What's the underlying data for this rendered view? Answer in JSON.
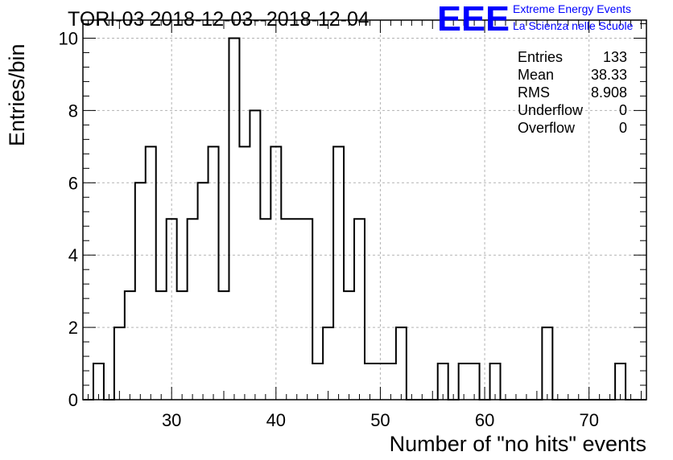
{
  "header": {
    "title": "TORI-03 2018-12-03--2018-12-04",
    "logo_text": "EEE",
    "logo_line1": "Extreme Energy Events",
    "logo_line2": "La Scienza nelle Scuole"
  },
  "stats_box": [
    {
      "label": "Entries",
      "value": "133"
    },
    {
      "label": "Mean",
      "value": "38.33"
    },
    {
      "label": "RMS",
      "value": "8.908"
    },
    {
      "label": "Underflow",
      "value": "0"
    },
    {
      "label": "Overflow",
      "value": "0"
    }
  ],
  "colors": {
    "line": "#000000",
    "grid": "#b3b3b3",
    "logo": "#0000ff"
  },
  "chart_data": {
    "type": "bar",
    "style": "step histogram",
    "title": "TORI-03 2018-12-03--2018-12-04",
    "xlabel": "Number of \"no hits\" events",
    "ylabel": "Entries/bin",
    "xlim": [
      21.5,
      75.5
    ],
    "ylim": [
      0,
      10.5
    ],
    "grid": true,
    "bin_width": 1,
    "x_ticks": [
      30,
      40,
      50,
      60,
      70
    ],
    "y_ticks": [
      0,
      2,
      4,
      6,
      8,
      10
    ],
    "bins": [
      {
        "x": 23,
        "count": 1
      },
      {
        "x": 25,
        "count": 2
      },
      {
        "x": 26,
        "count": 3
      },
      {
        "x": 27,
        "count": 6
      },
      {
        "x": 28,
        "count": 7
      },
      {
        "x": 29,
        "count": 3
      },
      {
        "x": 30,
        "count": 5
      },
      {
        "x": 31,
        "count": 3
      },
      {
        "x": 32,
        "count": 5
      },
      {
        "x": 33,
        "count": 6
      },
      {
        "x": 34,
        "count": 7
      },
      {
        "x": 35,
        "count": 3
      },
      {
        "x": 36,
        "count": 10
      },
      {
        "x": 37,
        "count": 7
      },
      {
        "x": 38,
        "count": 8
      },
      {
        "x": 39,
        "count": 5
      },
      {
        "x": 40,
        "count": 7
      },
      {
        "x": 41,
        "count": 5
      },
      {
        "x": 42,
        "count": 5
      },
      {
        "x": 43,
        "count": 5
      },
      {
        "x": 44,
        "count": 1
      },
      {
        "x": 45,
        "count": 2
      },
      {
        "x": 46,
        "count": 7
      },
      {
        "x": 47,
        "count": 3
      },
      {
        "x": 48,
        "count": 5
      },
      {
        "x": 49,
        "count": 1
      },
      {
        "x": 50,
        "count": 1
      },
      {
        "x": 51,
        "count": 1
      },
      {
        "x": 52,
        "count": 2
      },
      {
        "x": 56,
        "count": 1
      },
      {
        "x": 58,
        "count": 1
      },
      {
        "x": 59,
        "count": 1
      },
      {
        "x": 61,
        "count": 1
      },
      {
        "x": 66,
        "count": 2
      },
      {
        "x": 73,
        "count": 1
      }
    ]
  }
}
